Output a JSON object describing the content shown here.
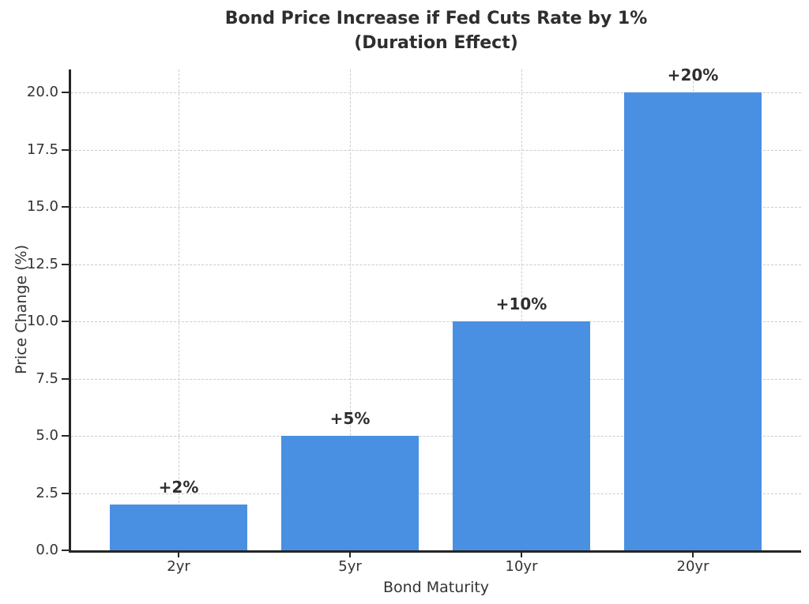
{
  "chart_data": {
    "type": "bar",
    "title": "Bond Price Increase if Fed Cuts Rate by 1%",
    "subtitle": "(Duration Effect)",
    "xlabel": "Bond Maturity",
    "ylabel": "Price Change (%)",
    "categories": [
      "2yr",
      "5yr",
      "10yr",
      "20yr"
    ],
    "values": [
      2,
      5,
      10,
      20
    ],
    "bar_labels": [
      "+2%",
      "+5%",
      "+10%",
      "+20%"
    ],
    "ylim": [
      0,
      21
    ],
    "yticks": [
      0.0,
      2.5,
      5.0,
      7.5,
      10.0,
      12.5,
      15.0,
      17.5,
      20.0
    ],
    "ytick_labels": [
      "0.0",
      "2.5",
      "5.0",
      "7.5",
      "10.0",
      "12.5",
      "15.0",
      "17.5",
      "20.0"
    ],
    "grid": true,
    "legend": "none",
    "colors": {
      "bar": "#4a90e2",
      "grid": "#cccccc",
      "spine": "#262626",
      "title_text": "#2e2e2e",
      "tick_text": "#333333",
      "background": "#ffffff"
    }
  }
}
